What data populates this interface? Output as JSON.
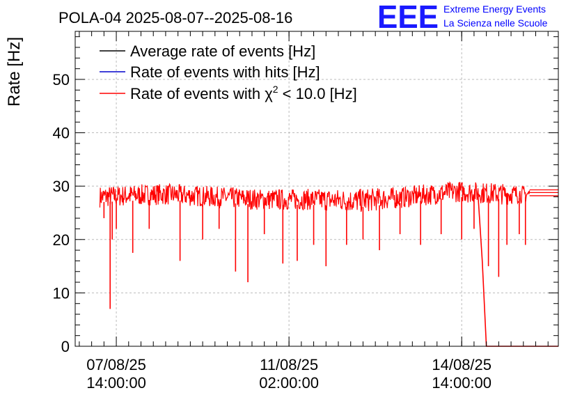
{
  "header": {
    "title": "POLA-04 2025-08-07--2025-08-16",
    "logo_text": "EEE",
    "logo_line1": "Extreme Energy Events",
    "logo_line2": "La Scienza nelle Scuole"
  },
  "colors": {
    "logo": "#1a1aff",
    "logo_text": "#0000ff",
    "avg": "#000000",
    "hits": "#0000cc",
    "chi2": "#ff0000",
    "grid": "#bbbbbb"
  },
  "chart_data": {
    "type": "line",
    "title": "POLA-04 2025-08-07--2025-08-16",
    "xlabel": "",
    "ylabel": "Rate [Hz]",
    "ylim": [
      0,
      59
    ],
    "xlim": [
      "2025-08-06 18:00:00",
      "2025-08-16 13:00:00"
    ],
    "grid": true,
    "legend_position": "top-left",
    "y_ticks": [
      "0",
      "10",
      "20",
      "30",
      "40",
      "50"
    ],
    "x_ticks": [
      {
        "at": "2025-08-07 14:00:00",
        "line1": "07/08/25",
        "line2": "14:00:00"
      },
      {
        "at": "2025-08-11 02:00:00",
        "line1": "11/08/25",
        "line2": "02:00:00"
      },
      {
        "at": "2025-08-14 14:00:00",
        "line1": "14/08/25",
        "line2": "14:00:00"
      }
    ],
    "legend": [
      {
        "label": "Average rate of events [Hz]",
        "color": "#000000"
      },
      {
        "label": "Rate of events with hits [Hz]",
        "color": "#0000cc"
      },
      {
        "label_main": "Rate of events with χ",
        "label_sup": "2",
        "label_tail": " < 10.0 [Hz]",
        "color": "#ff0000"
      }
    ],
    "data_start": "2025-08-07 06:00:00",
    "data_end": "2025-08-15 23:00:00",
    "series": [
      {
        "name": "Rate of events with χ2 < 10.0 [Hz]",
        "band_profile": [
          {
            "x": "2025-08-07 06:00:00",
            "low": 26.0,
            "high": 30.0
          },
          {
            "x": "2025-08-08 12:00:00",
            "low": 26.5,
            "high": 30.5
          },
          {
            "x": "2025-08-09 12:00:00",
            "low": 26.0,
            "high": 30.0
          },
          {
            "x": "2025-08-10 12:00:00",
            "low": 25.5,
            "high": 29.5
          },
          {
            "x": "2025-08-11 12:00:00",
            "low": 25.5,
            "high": 29.5
          },
          {
            "x": "2025-08-12 12:00:00",
            "low": 25.0,
            "high": 29.5
          },
          {
            "x": "2025-08-13 12:00:00",
            "low": 26.0,
            "high": 30.0
          },
          {
            "x": "2025-08-14 12:00:00",
            "low": 27.0,
            "high": 31.0
          },
          {
            "x": "2025-08-15 12:00:00",
            "low": 26.5,
            "high": 30.5
          },
          {
            "x": "2025-08-15 23:00:00",
            "low": 27.0,
            "high": 30.0
          }
        ],
        "dips": [
          {
            "x": "2025-08-07 08:00:00",
            "y": 24
          },
          {
            "x": "2025-08-07 11:00:00",
            "y": 7
          },
          {
            "x": "2025-08-07 12:00:00",
            "y": 20
          },
          {
            "x": "2025-08-07 14:00:00",
            "y": 22
          },
          {
            "x": "2025-08-07 22:00:00",
            "y": 17.5
          },
          {
            "x": "2025-08-08 06:00:00",
            "y": 22
          },
          {
            "x": "2025-08-08 21:00:00",
            "y": 16
          },
          {
            "x": "2025-08-09 08:00:00",
            "y": 20
          },
          {
            "x": "2025-08-09 16:00:00",
            "y": 22
          },
          {
            "x": "2025-08-10 00:00:00",
            "y": 14
          },
          {
            "x": "2025-08-10 06:00:00",
            "y": 12
          },
          {
            "x": "2025-08-10 14:00:00",
            "y": 21
          },
          {
            "x": "2025-08-10 23:00:00",
            "y": 15.5
          },
          {
            "x": "2025-08-11 06:00:00",
            "y": 16
          },
          {
            "x": "2025-08-11 14:00:00",
            "y": 19
          },
          {
            "x": "2025-08-11 20:00:00",
            "y": 15
          },
          {
            "x": "2025-08-12 06:00:00",
            "y": 19
          },
          {
            "x": "2025-08-12 14:00:00",
            "y": 20
          },
          {
            "x": "2025-08-12 22:00:00",
            "y": 18
          },
          {
            "x": "2025-08-13 08:00:00",
            "y": 21
          },
          {
            "x": "2025-08-13 18:00:00",
            "y": 19
          },
          {
            "x": "2025-08-14 04:00:00",
            "y": 21
          },
          {
            "x": "2025-08-14 14:00:00",
            "y": 20
          },
          {
            "x": "2025-08-14 20:00:00",
            "y": 22
          },
          {
            "x": "2025-08-15 03:00:00",
            "y": 15
          },
          {
            "x": "2025-08-15 08:00:00",
            "y": 13
          },
          {
            "x": "2025-08-15 12:00:00",
            "y": 19
          },
          {
            "x": "2025-08-15 18:00:00",
            "y": 21
          },
          {
            "x": "2025-08-15 21:00:00",
            "y": 19
          }
        ],
        "drop_to_zero": [
          {
            "x": "2025-08-14 22:00:00",
            "y": 28
          },
          {
            "x": "2025-08-15 00:00:00",
            "y": 16
          },
          {
            "x": "2025-08-15 02:00:00",
            "y": 0
          },
          {
            "x": "2025-08-16 13:00:00",
            "y": 0
          }
        ],
        "flat_after_end": [
          28.2,
          28.8,
          29.3
        ]
      }
    ]
  }
}
